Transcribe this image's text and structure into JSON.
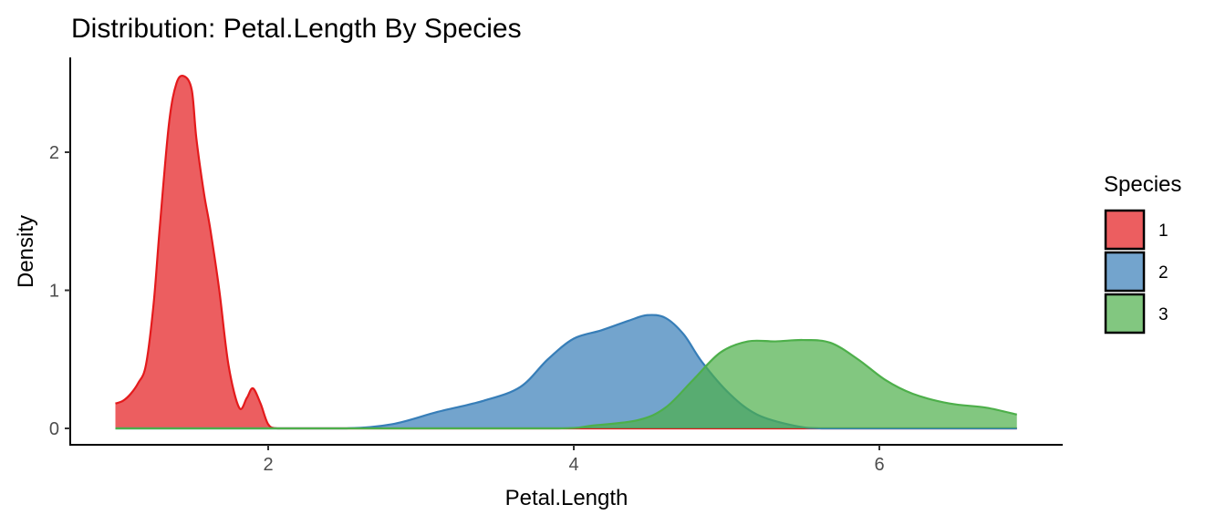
{
  "chart_data": {
    "type": "area",
    "title": "Distribution: Petal.Length By Species",
    "xlabel": "Petal.Length",
    "ylabel": "Density",
    "xlim": [
      0.7,
      7.2
    ],
    "ylim": [
      -0.12,
      2.7
    ],
    "xticks": [
      2,
      4,
      6
    ],
    "yticks": [
      0,
      1,
      2
    ],
    "grid": false,
    "legend": {
      "title": "Species",
      "placement": "right"
    },
    "series": [
      {
        "name": "1",
        "color": "#E41A1C",
        "fill": "#E41A1C",
        "x": [
          1.0,
          1.05,
          1.1,
          1.15,
          1.2,
          1.25,
          1.29,
          1.35,
          1.4,
          1.45,
          1.5,
          1.53,
          1.58,
          1.62,
          1.68,
          1.74,
          1.81,
          1.86,
          1.9,
          1.95,
          2.0,
          2.06,
          2.2,
          2.5,
          3,
          4,
          5,
          6,
          6.9
        ],
        "y": [
          0.18,
          0.2,
          0.25,
          0.33,
          0.46,
          0.9,
          1.45,
          2.2,
          2.5,
          2.55,
          2.45,
          2.1,
          1.7,
          1.45,
          1.0,
          0.46,
          0.15,
          0.22,
          0.29,
          0.18,
          0.03,
          0.0,
          0,
          0,
          0,
          0,
          0,
          0,
          0
        ]
      },
      {
        "name": "2",
        "color": "#377EB8",
        "fill": "#377EB8",
        "x": [
          1.0,
          2.0,
          2.5,
          2.81,
          3.11,
          3.41,
          3.65,
          3.83,
          4.0,
          4.18,
          4.36,
          4.48,
          4.6,
          4.72,
          4.84,
          5.02,
          5.2,
          5.44,
          5.62,
          6.0,
          6.9
        ],
        "y": [
          0,
          0,
          0,
          0.03,
          0.12,
          0.2,
          0.3,
          0.5,
          0.65,
          0.71,
          0.78,
          0.82,
          0.8,
          0.68,
          0.48,
          0.25,
          0.1,
          0.02,
          0.0,
          0,
          0
        ]
      },
      {
        "name": "3",
        "color": "#4DAF4A",
        "fill": "#4DAF4A",
        "x": [
          1.0,
          3.0,
          3.9,
          4.12,
          4.42,
          4.6,
          4.78,
          4.96,
          5.14,
          5.32,
          5.5,
          5.68,
          5.86,
          6.04,
          6.22,
          6.46,
          6.7,
          6.9
        ],
        "y": [
          0,
          0,
          0,
          0.02,
          0.06,
          0.15,
          0.35,
          0.55,
          0.63,
          0.63,
          0.64,
          0.62,
          0.5,
          0.35,
          0.25,
          0.18,
          0.15,
          0.1
        ]
      }
    ]
  }
}
